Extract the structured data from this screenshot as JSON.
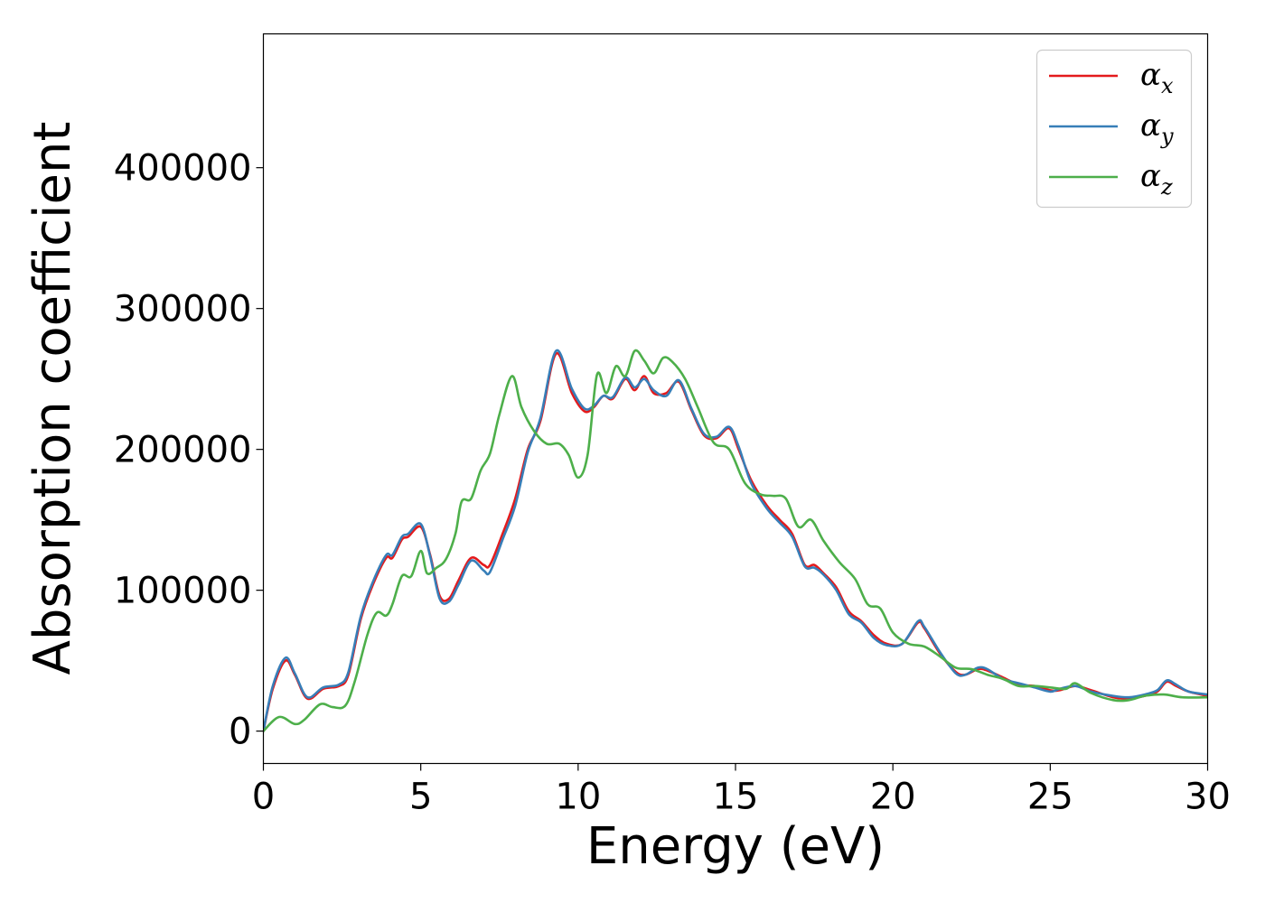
{
  "chart_data": {
    "type": "line",
    "xlabel": "Energy (eV)",
    "ylabel": "Absorption coefficient",
    "xlim": [
      0,
      30
    ],
    "ylim": [
      -23000,
      495000
    ],
    "xticks": [
      0,
      5,
      10,
      15,
      20,
      25,
      30
    ],
    "xtick_labels": [
      "0",
      "5",
      "10",
      "15",
      "20",
      "25",
      "30"
    ],
    "yticks": [
      0,
      100000,
      200000,
      300000,
      400000
    ],
    "ytick_labels": [
      "0",
      "100000",
      "200000",
      "300000",
      "400000"
    ],
    "grid": false,
    "legend_position": "top-right",
    "series": [
      {
        "name": "αx",
        "symbol": "α",
        "sub": "x",
        "color": "#e41a1c",
        "x": [
          0,
          0.3,
          0.7,
          1.0,
          1.4,
          1.9,
          2.4,
          2.7,
          3.1,
          3.5,
          3.9,
          4.1,
          4.4,
          4.6,
          5.0,
          5.3,
          5.6,
          5.9,
          6.2,
          6.6,
          7.0,
          7.2,
          7.6,
          8.0,
          8.4,
          8.8,
          9.3,
          9.8,
          10.2,
          10.5,
          10.8,
          11.1,
          11.5,
          11.8,
          12.1,
          12.4,
          12.8,
          13.2,
          13.6,
          14.0,
          14.4,
          14.8,
          15.1,
          15.5,
          16.0,
          16.4,
          16.8,
          17.2,
          17.5,
          17.8,
          18.2,
          18.6,
          19.0,
          19.4,
          19.8,
          20.3,
          20.8,
          21.0,
          21.5,
          22.0,
          22.3,
          22.7,
          23.0,
          23.5,
          24.0,
          24.5,
          25.0,
          25.3,
          25.8,
          26.3,
          27.0,
          27.5,
          28.0,
          28.4,
          28.7,
          29.0,
          29.4,
          30.0
        ],
        "y": [
          0,
          30000,
          50000,
          40000,
          23000,
          30000,
          32000,
          40000,
          80000,
          105000,
          123000,
          123000,
          136000,
          138000,
          145000,
          125000,
          96000,
          94000,
          107000,
          123000,
          118000,
          118000,
          140000,
          165000,
          200000,
          220000,
          268000,
          240000,
          227000,
          230000,
          238000,
          236000,
          250000,
          242000,
          252000,
          240000,
          240000,
          248000,
          228000,
          210000,
          208000,
          215000,
          200000,
          178000,
          160000,
          150000,
          140000,
          118000,
          118000,
          112000,
          102000,
          85000,
          78000,
          68000,
          62000,
          62000,
          77000,
          73000,
          55000,
          42000,
          40000,
          44000,
          43000,
          38000,
          33000,
          32000,
          29000,
          29000,
          32000,
          29000,
          24000,
          23000,
          25000,
          28000,
          35000,
          32000,
          28000,
          25000
        ]
      },
      {
        "name": "αy",
        "symbol": "α",
        "sub": "y",
        "color": "#377eb8",
        "x": [
          0,
          0.3,
          0.7,
          1.0,
          1.4,
          1.9,
          2.4,
          2.7,
          3.1,
          3.5,
          3.9,
          4.1,
          4.4,
          4.6,
          5.0,
          5.3,
          5.6,
          5.9,
          6.2,
          6.6,
          7.0,
          7.2,
          7.6,
          8.0,
          8.4,
          8.8,
          9.3,
          9.8,
          10.2,
          10.5,
          10.8,
          11.1,
          11.5,
          11.8,
          12.1,
          12.4,
          12.8,
          13.2,
          13.6,
          14.0,
          14.4,
          14.8,
          15.1,
          15.5,
          16.0,
          16.4,
          16.8,
          17.2,
          17.5,
          17.8,
          18.2,
          18.6,
          19.0,
          19.4,
          19.8,
          20.3,
          20.8,
          21.0,
          21.5,
          22.0,
          22.3,
          22.7,
          23.0,
          23.5,
          24.0,
          24.5,
          25.0,
          25.3,
          25.8,
          26.3,
          27.0,
          27.5,
          28.0,
          28.4,
          28.7,
          29.0,
          29.4,
          30.0
        ],
        "y": [
          0,
          32000,
          52000,
          41000,
          24000,
          31000,
          33000,
          42000,
          82000,
          107000,
          125000,
          125000,
          138000,
          140000,
          147000,
          124000,
          94000,
          92000,
          104000,
          121000,
          114000,
          113000,
          136000,
          160000,
          198000,
          222000,
          270000,
          243000,
          229000,
          231000,
          238000,
          237000,
          251000,
          244000,
          250000,
          242000,
          238000,
          249000,
          229000,
          211000,
          209000,
          216000,
          202000,
          176000,
          158000,
          148000,
          138000,
          117000,
          116000,
          111000,
          100000,
          83000,
          77000,
          66000,
          61000,
          62000,
          78000,
          74000,
          56000,
          41000,
          40000,
          45000,
          44000,
          37000,
          34000,
          31000,
          28000,
          30000,
          32000,
          28000,
          25000,
          24000,
          26000,
          29000,
          36000,
          33000,
          28000,
          26000
        ]
      },
      {
        "name": "αz",
        "symbol": "α",
        "sub": "z",
        "color": "#4daf4a",
        "x": [
          0,
          0.5,
          1.0,
          1.3,
          1.8,
          2.2,
          2.6,
          2.9,
          3.3,
          3.6,
          3.9,
          4.1,
          4.4,
          4.7,
          5.0,
          5.2,
          5.5,
          5.8,
          6.1,
          6.3,
          6.6,
          6.9,
          7.2,
          7.5,
          7.9,
          8.2,
          8.6,
          9.0,
          9.4,
          9.7,
          10.0,
          10.3,
          10.6,
          10.9,
          11.2,
          11.5,
          11.8,
          12.1,
          12.4,
          12.7,
          13.0,
          13.4,
          13.8,
          14.3,
          14.8,
          15.3,
          15.8,
          16.2,
          16.6,
          17.0,
          17.4,
          17.8,
          18.3,
          18.8,
          19.2,
          19.6,
          20.0,
          20.5,
          21.0,
          21.5,
          22.0,
          22.5,
          23.0,
          23.5,
          24.0,
          24.5,
          25.0,
          25.5,
          25.8,
          26.3,
          27.0,
          27.5,
          28.0,
          28.6,
          29.2,
          30.0
        ],
        "y": [
          0,
          10000,
          5000,
          8000,
          19000,
          17000,
          18000,
          35000,
          68000,
          84000,
          82000,
          90000,
          110000,
          110000,
          128000,
          112000,
          116000,
          122000,
          140000,
          163000,
          165000,
          185000,
          197000,
          225000,
          252000,
          230000,
          213000,
          204000,
          204000,
          196000,
          180000,
          196000,
          253000,
          240000,
          259000,
          252000,
          270000,
          263000,
          254000,
          265000,
          262000,
          250000,
          230000,
          205000,
          200000,
          176000,
          168000,
          167000,
          165000,
          145000,
          150000,
          135000,
          120000,
          108000,
          90000,
          87000,
          70000,
          62000,
          60000,
          53000,
          45000,
          44000,
          40000,
          37000,
          32000,
          32000,
          31000,
          30000,
          34000,
          27000,
          22000,
          22000,
          25000,
          26000,
          24000,
          24000
        ]
      }
    ]
  }
}
